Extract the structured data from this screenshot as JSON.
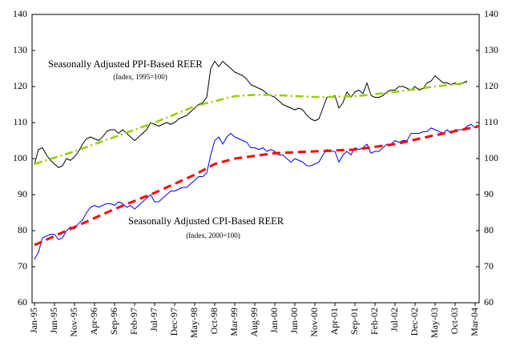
{
  "chart_data": {
    "type": "line",
    "annotations": [
      "Seasonally Adjusted PPI-Based REER",
      "(Index, 1995=100)",
      "Seasonally Adjusted CPI-Based REER",
      "(Index, 2000=100)"
    ],
    "categories": [
      "Jan-95",
      null,
      null,
      null,
      null,
      "Jun-95",
      null,
      null,
      null,
      null,
      "Nov-95",
      null,
      null,
      null,
      null,
      "Apr-96",
      null,
      null,
      null,
      null,
      "Sep-96",
      null,
      null,
      null,
      null,
      "Feb-97",
      null,
      null,
      null,
      null,
      "Jul-97",
      null,
      null,
      null,
      null,
      "Dec-97",
      null,
      null,
      null,
      null,
      "May-98",
      null,
      null,
      null,
      null,
      "Oct-98",
      null,
      null,
      null,
      null,
      "Mar-99",
      null,
      null,
      null,
      null,
      "Aug-99",
      null,
      null,
      null,
      null,
      "Jan-00",
      null,
      null,
      null,
      null,
      "Jun-00",
      null,
      null,
      null,
      null,
      "Nov-00",
      null,
      null,
      null,
      null,
      "Apr-01",
      null,
      null,
      null,
      null,
      "Sep-01",
      null,
      null,
      null,
      null,
      "Feb-02",
      null,
      null,
      null,
      null,
      "Jul-02",
      null,
      null,
      null,
      null,
      "Dec-02",
      null,
      null,
      null,
      null,
      "May-03",
      null,
      null,
      null,
      null,
      "Oct-03",
      null,
      null,
      null,
      null,
      "Mar-04",
      null
    ],
    "series": [
      {
        "color": "#000000",
        "style": "solid",
        "width": 1,
        "values": [
          98.5,
          102.5,
          103,
          101,
          99.5,
          98.5,
          97.5,
          98,
          100,
          99.5,
          100.5,
          102,
          104,
          105.5,
          106,
          105.5,
          105,
          106,
          107.5,
          108,
          108,
          107,
          108,
          107,
          106,
          105,
          106,
          107,
          108,
          110,
          109.5,
          109,
          109.5,
          110,
          109.5,
          110,
          111,
          111.5,
          112,
          113,
          114,
          115,
          115.5,
          117,
          125,
          127,
          125.5,
          127,
          126,
          125,
          124,
          123.5,
          123,
          122,
          120.5,
          120,
          119.5,
          119,
          118,
          117.5,
          117,
          116,
          115,
          114.5,
          114,
          113.5,
          114,
          113.5,
          112,
          111,
          110.5,
          111,
          114,
          117,
          117,
          117.5,
          114,
          115.5,
          118.5,
          117,
          118.5,
          119,
          118,
          121,
          117.5,
          117,
          117,
          117.5,
          118.5,
          119,
          119,
          120,
          120,
          119.5,
          119,
          120,
          119,
          119.5,
          121,
          121.5,
          123,
          122,
          121,
          121,
          120.5,
          121,
          120.5,
          121,
          121.5,
          null,
          null,
          null
        ]
      },
      {
        "color": "#0000ff",
        "style": "solid",
        "width": 1,
        "values": [
          72,
          74,
          78,
          78.5,
          79,
          79,
          77.5,
          78,
          80,
          81,
          80.5,
          82,
          83,
          85,
          86.5,
          87,
          86.5,
          87,
          87.5,
          87.5,
          87,
          88,
          87.5,
          86.5,
          87,
          86,
          87,
          88,
          89,
          90,
          88,
          88,
          89,
          90,
          91,
          91,
          91.5,
          92,
          92,
          93,
          94,
          95,
          95,
          96,
          101,
          105,
          106,
          104,
          106,
          107,
          106,
          105.5,
          105,
          104.5,
          103,
          103,
          102.5,
          103,
          102,
          102.5,
          102,
          101,
          101,
          100,
          99,
          100,
          99.5,
          99,
          98,
          98,
          98.5,
          99,
          101,
          102.5,
          102,
          102,
          99,
          101,
          102,
          101,
          103,
          102.5,
          103,
          104,
          101.5,
          102,
          102,
          103,
          104,
          104,
          105,
          104.5,
          105,
          105,
          107,
          107,
          107,
          107.5,
          107.5,
          108.5,
          108,
          107.5,
          107,
          108,
          107,
          108,
          108,
          108,
          109,
          109.5,
          108.5,
          109
        ]
      },
      {
        "color": "#99cc00",
        "style": "dashdot",
        "width": 2.5,
        "values": [
          98.5,
          98.85,
          99.2,
          99.55,
          99.9,
          100.25,
          100.6,
          100.95,
          101.3,
          101.65,
          102,
          102.4,
          102.8,
          103.2,
          103.6,
          104,
          104.4,
          104.8,
          105.2,
          105.6,
          106,
          106.4,
          106.8,
          107.2,
          107.6,
          108,
          108.4,
          108.8,
          109.2,
          109.6,
          110,
          110.45,
          110.9,
          111.35,
          111.8,
          112.25,
          112.7,
          113.15,
          113.6,
          114.05,
          114.5,
          114.8,
          115.1,
          115.4,
          115.6,
          115.9,
          116.2,
          116.5,
          116.8,
          117.05,
          117.3,
          117.4,
          117.5,
          117.55,
          117.6,
          117.7,
          117.7,
          117.7,
          117.7,
          117.65,
          117.6,
          117.55,
          117.5,
          117.45,
          117.4,
          117.35,
          117.3,
          117.25,
          117.2,
          117.15,
          117.1,
          117.1,
          117.1,
          117.1,
          117.15,
          117.15,
          117.2,
          117.2,
          117.25,
          117.25,
          117.3,
          117.4,
          117.5,
          117.6,
          117.75,
          117.9,
          118,
          118.1,
          118.25,
          118.4,
          118.5,
          118.65,
          118.8,
          118.95,
          119.1,
          119.25,
          119.4,
          119.55,
          119.7,
          119.85,
          120,
          120.1,
          120.25,
          120.4,
          120.5,
          120.6,
          120.75,
          120.9,
          121,
          null,
          null,
          null
        ]
      },
      {
        "color": "#ff0000",
        "style": "dashed",
        "width": 3,
        "values": [
          76,
          76.5,
          77,
          77.5,
          78,
          78.5,
          79,
          79.5,
          80,
          80.5,
          81,
          81.5,
          82,
          82.5,
          83,
          83.5,
          84,
          84.5,
          85,
          85.5,
          86,
          86.45,
          86.9,
          87.35,
          87.8,
          88.25,
          88.7,
          89.15,
          89.6,
          90.05,
          90.5,
          91,
          91.5,
          92,
          92.5,
          93,
          93.5,
          94,
          94.5,
          95,
          95.5,
          96.1,
          96.7,
          97.3,
          97.9,
          98.5,
          98.8,
          99.1,
          99.4,
          99.7,
          100,
          100.15,
          100.3,
          100.45,
          100.6,
          100.75,
          100.9,
          101.05,
          101.2,
          101.35,
          101.5,
          101.55,
          101.6,
          101.65,
          101.7,
          101.75,
          101.8,
          101.85,
          101.9,
          101.95,
          102,
          102.05,
          102.1,
          102.15,
          102.2,
          102.25,
          102.3,
          102.35,
          102.4,
          102.45,
          102.5,
          102.65,
          102.8,
          102.95,
          103.1,
          103.25,
          103.4,
          103.55,
          103.7,
          103.85,
          104,
          104.25,
          104.5,
          104.75,
          105,
          105.25,
          105.5,
          105.75,
          106,
          106.25,
          106.5,
          106.7,
          106.95,
          107.15,
          107.4,
          107.6,
          107.85,
          108.05,
          108.3,
          108.5,
          108.75,
          109
        ]
      }
    ],
    "ylim": [
      60,
      140
    ],
    "yticks": [
      60,
      70,
      80,
      90,
      100,
      110,
      120,
      130,
      140
    ],
    "y2lim": [
      60,
      140
    ],
    "y2ticks": [
      60,
      70,
      80,
      90,
      100,
      110,
      120,
      130,
      140
    ],
    "grid": false
  }
}
